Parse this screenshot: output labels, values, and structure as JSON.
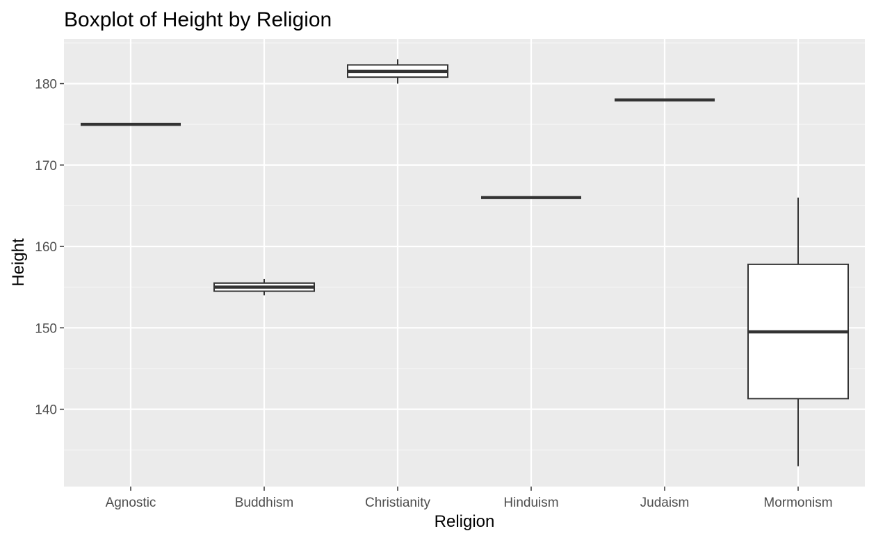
{
  "chart_data": {
    "type": "boxplot",
    "title": "Boxplot of Height by Religion",
    "xlabel": "Religion",
    "ylabel": "Height",
    "ylim": [
      130.5,
      185.5
    ],
    "y_ticks": [
      140,
      150,
      160,
      170,
      180
    ],
    "y_minor_ticks": [
      135,
      145,
      155,
      165,
      175,
      185
    ],
    "categories": [
      "Agnostic",
      "Buddhism",
      "Christianity",
      "Hinduism",
      "Judaism",
      "Mormonism"
    ],
    "boxes": [
      {
        "category": "Agnostic",
        "min": 175,
        "q1": 175,
        "median": 175,
        "q3": 175,
        "max": 175
      },
      {
        "category": "Buddhism",
        "min": 154,
        "q1": 154.5,
        "median": 155,
        "q3": 155.5,
        "max": 156
      },
      {
        "category": "Christianity",
        "min": 180,
        "q1": 180.8,
        "median": 181.5,
        "q3": 182.3,
        "max": 183
      },
      {
        "category": "Hinduism",
        "min": 166,
        "q1": 166,
        "median": 166,
        "q3": 166,
        "max": 166
      },
      {
        "category": "Judaism",
        "min": 178,
        "q1": 178,
        "median": 178,
        "q3": 178,
        "max": 178
      },
      {
        "category": "Mormonism",
        "min": 133,
        "q1": 141.3,
        "median": 149.5,
        "q3": 157.8,
        "max": 166
      }
    ],
    "grid": true,
    "legend": "none",
    "colors": {
      "panel_background": "#ebebeb",
      "grid_major": "#ffffff",
      "grid_minor": "#f5f5f5",
      "box_fill": "#ffffff",
      "box_line": "#333333",
      "tick_label": "#4d4d4d"
    }
  }
}
